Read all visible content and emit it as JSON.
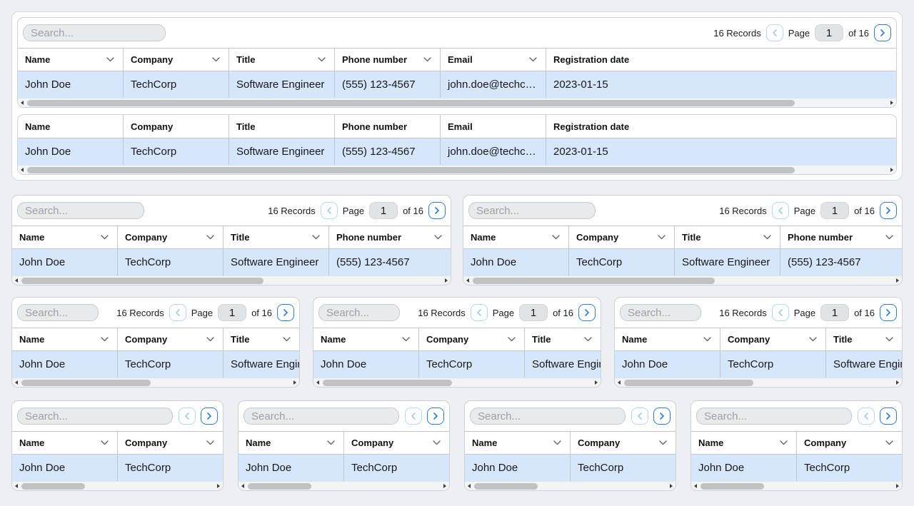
{
  "shared": {
    "search_placeholder": "Search...",
    "records_text": "16 Records",
    "page_label": "Page",
    "page_value": "1",
    "page_total_text": "of 16",
    "columns": [
      "Name",
      "Company",
      "Title",
      "Phone number",
      "Email",
      "Registration date"
    ],
    "row_values": [
      "John Doe",
      "TechCorp",
      "Software Engineer",
      "(555) 123-4567",
      "john.doe@techcor…",
      "2023-01-15"
    ]
  },
  "colors": {
    "page_background": "#edeff2",
    "card_background": "#ffffff",
    "card_border": "#cdd2d7",
    "grid_border": "#c4c8cc",
    "selected_row_background": "#d6e7fc",
    "search_background": "#e9eaec",
    "page_input_background": "#e2e3e5",
    "active_button_blue": "#2b7ce0",
    "disabled_button_blue": "#a6c9ec",
    "scrollbar_thumb": "#c1c2c4",
    "scrollbar_track": "#f3f4f5"
  },
  "cards": [
    {
      "section": "top",
      "size": "lg",
      "toolbar": "full",
      "column_count": 6,
      "sortable_columns": [
        0,
        1,
        2,
        3,
        4
      ],
      "scrollbar_thumb_percent": 88
    },
    {
      "section": "top",
      "size": "lg",
      "toolbar": "none",
      "column_count": 6,
      "sortable_columns": [],
      "scrollbar_thumb_percent": 88
    },
    {
      "section": "row2",
      "size": "md",
      "toolbar": "full",
      "column_count": 4,
      "sortable_columns": [
        0,
        1,
        2,
        3
      ],
      "scrollbar_thumb_percent": 56
    },
    {
      "section": "row2",
      "size": "md",
      "toolbar": "full",
      "column_count": 4,
      "sortable_columns": [
        0,
        1,
        2,
        3
      ],
      "scrollbar_thumb_percent": 56
    },
    {
      "section": "row3",
      "size": "sm",
      "toolbar": "full",
      "column_count": 3,
      "sortable_columns": [
        0,
        1,
        2
      ],
      "scrollbar_thumb_percent": 46
    },
    {
      "section": "row3",
      "size": "sm",
      "toolbar": "full",
      "column_count": 3,
      "sortable_columns": [
        0,
        1,
        2
      ],
      "scrollbar_thumb_percent": 46
    },
    {
      "section": "row3",
      "size": "sm",
      "toolbar": "full",
      "column_count": 3,
      "sortable_columns": [
        0,
        1,
        2
      ],
      "scrollbar_thumb_percent": 46
    },
    {
      "section": "row4",
      "size": "xs",
      "toolbar": "compact",
      "column_count": 2,
      "sortable_columns": [
        0,
        1
      ],
      "scrollbar_thumb_percent": 31
    },
    {
      "section": "row4",
      "size": "xs",
      "toolbar": "compact",
      "column_count": 2,
      "sortable_columns": [
        0,
        1
      ],
      "scrollbar_thumb_percent": 31
    },
    {
      "section": "row4",
      "size": "xs",
      "toolbar": "compact",
      "column_count": 2,
      "sortable_columns": [
        0,
        1
      ],
      "scrollbar_thumb_percent": 31
    },
    {
      "section": "row4",
      "size": "xs",
      "toolbar": "compact",
      "column_count": 2,
      "sortable_columns": [
        0,
        1
      ],
      "scrollbar_thumb_percent": 31
    }
  ]
}
